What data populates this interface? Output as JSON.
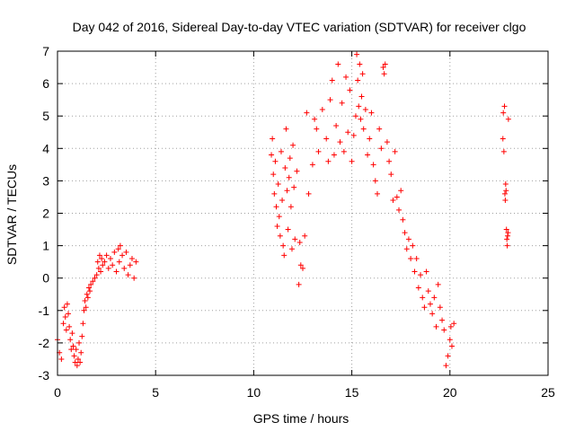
{
  "chart_data": {
    "type": "scatter",
    "title": "Day 042 of 2016, Sidereal Day-to-day VTEC variation (SDTVAR) for receiver clgo",
    "xlabel": "GPS time / hours",
    "ylabel": "SDTVAR / TECUs",
    "xlim": [
      0,
      25
    ],
    "ylim": [
      -3,
      7
    ],
    "x_ticks": [
      "0",
      "5",
      "10",
      "15",
      "20",
      "25"
    ],
    "y_ticks": [
      "-3",
      "-2",
      "-1",
      "0",
      "1",
      "2",
      "3",
      "4",
      "5",
      "6",
      "7"
    ],
    "x_tick_values": [
      0,
      5,
      10,
      15,
      20,
      25
    ],
    "y_tick_values": [
      -3,
      -2,
      -1,
      0,
      1,
      2,
      3,
      4,
      5,
      6,
      7
    ],
    "grid": true,
    "marker": "+",
    "marker_color": "#ff0000",
    "series": [
      {
        "name": "SDTVAR",
        "points": [
          [
            0.0,
            -1.9
          ],
          [
            0.1,
            -2.3
          ],
          [
            0.2,
            -2.5
          ],
          [
            0.3,
            -1.4
          ],
          [
            0.35,
            -0.9
          ],
          [
            0.4,
            -1.2
          ],
          [
            0.45,
            -1.6
          ],
          [
            0.5,
            -0.8
          ],
          [
            0.55,
            -1.1
          ],
          [
            0.6,
            -1.5
          ],
          [
            0.65,
            -1.9
          ],
          [
            0.7,
            -2.2
          ],
          [
            0.75,
            -1.7
          ],
          [
            0.8,
            -2.1
          ],
          [
            0.85,
            -2.4
          ],
          [
            0.9,
            -2.6
          ],
          [
            0.95,
            -2.2
          ],
          [
            1.0,
            -2.7
          ],
          [
            1.05,
            -2.5
          ],
          [
            1.1,
            -2.0
          ],
          [
            1.15,
            -2.6
          ],
          [
            1.2,
            -2.3
          ],
          [
            1.25,
            -1.8
          ],
          [
            1.3,
            -1.4
          ],
          [
            1.35,
            -1.0
          ],
          [
            1.4,
            -0.7
          ],
          [
            1.45,
            -0.9
          ],
          [
            1.5,
            -0.5
          ],
          [
            1.55,
            -0.6
          ],
          [
            1.6,
            -0.3
          ],
          [
            1.65,
            -0.4
          ],
          [
            1.7,
            -0.2
          ],
          [
            1.8,
            -0.1
          ],
          [
            1.9,
            0.0
          ],
          [
            2.0,
            0.1
          ],
          [
            2.05,
            0.5
          ],
          [
            2.1,
            0.3
          ],
          [
            2.15,
            0.7
          ],
          [
            2.2,
            0.2
          ],
          [
            2.25,
            0.6
          ],
          [
            2.3,
            0.4
          ],
          [
            2.4,
            0.5
          ],
          [
            2.5,
            0.7
          ],
          [
            2.6,
            0.3
          ],
          [
            2.7,
            0.6
          ],
          [
            2.8,
            0.4
          ],
          [
            2.9,
            0.8
          ],
          [
            3.0,
            0.2
          ],
          [
            3.1,
            0.9
          ],
          [
            3.15,
            0.5
          ],
          [
            3.2,
            1.0
          ],
          [
            3.3,
            0.7
          ],
          [
            3.4,
            0.3
          ],
          [
            3.5,
            0.8
          ],
          [
            3.6,
            0.1
          ],
          [
            3.7,
            0.4
          ],
          [
            3.8,
            0.6
          ],
          [
            3.9,
            0.0
          ],
          [
            4.0,
            0.5
          ],
          [
            10.9,
            3.8
          ],
          [
            10.95,
            4.3
          ],
          [
            11.0,
            3.2
          ],
          [
            11.05,
            2.6
          ],
          [
            11.1,
            3.6
          ],
          [
            11.15,
            2.2
          ],
          [
            11.2,
            1.6
          ],
          [
            11.25,
            2.9
          ],
          [
            11.3,
            1.9
          ],
          [
            11.35,
            1.3
          ],
          [
            11.4,
            3.9
          ],
          [
            11.45,
            2.4
          ],
          [
            11.5,
            1.0
          ],
          [
            11.55,
            0.7
          ],
          [
            11.6,
            3.4
          ],
          [
            11.65,
            4.6
          ],
          [
            11.7,
            2.7
          ],
          [
            11.75,
            1.5
          ],
          [
            11.8,
            3.1
          ],
          [
            11.85,
            3.7
          ],
          [
            11.9,
            2.2
          ],
          [
            11.95,
            0.9
          ],
          [
            12.0,
            4.1
          ],
          [
            12.05,
            2.8
          ],
          [
            12.1,
            1.2
          ],
          [
            12.2,
            3.3
          ],
          [
            12.3,
            -0.2
          ],
          [
            12.35,
            1.1
          ],
          [
            12.4,
            0.4
          ],
          [
            12.5,
            0.3
          ],
          [
            12.6,
            1.3
          ],
          [
            12.7,
            5.1
          ],
          [
            12.8,
            2.6
          ],
          [
            13.0,
            3.5
          ],
          [
            13.1,
            4.9
          ],
          [
            13.2,
            4.6
          ],
          [
            13.3,
            3.9
          ],
          [
            13.5,
            5.2
          ],
          [
            13.7,
            4.3
          ],
          [
            13.8,
            3.6
          ],
          [
            13.9,
            5.5
          ],
          [
            14.0,
            6.1
          ],
          [
            14.1,
            3.8
          ],
          [
            14.2,
            4.7
          ],
          [
            14.3,
            6.6
          ],
          [
            14.4,
            4.2
          ],
          [
            14.5,
            5.4
          ],
          [
            14.6,
            3.9
          ],
          [
            14.7,
            6.2
          ],
          [
            14.8,
            4.5
          ],
          [
            14.9,
            5.8
          ],
          [
            15.0,
            3.6
          ],
          [
            15.1,
            4.4
          ],
          [
            15.2,
            5.0
          ],
          [
            15.25,
            6.9
          ],
          [
            15.3,
            6.1
          ],
          [
            15.35,
            5.3
          ],
          [
            15.4,
            6.6
          ],
          [
            15.45,
            4.9
          ],
          [
            15.5,
            5.6
          ],
          [
            15.55,
            6.3
          ],
          [
            15.6,
            4.6
          ],
          [
            15.7,
            5.2
          ],
          [
            15.8,
            3.8
          ],
          [
            15.9,
            4.3
          ],
          [
            16.0,
            5.1
          ],
          [
            16.1,
            3.5
          ],
          [
            16.2,
            3.0
          ],
          [
            16.3,
            2.6
          ],
          [
            16.4,
            4.6
          ],
          [
            16.5,
            4.0
          ],
          [
            16.6,
            6.5
          ],
          [
            16.65,
            6.3
          ],
          [
            16.7,
            6.6
          ],
          [
            16.8,
            4.2
          ],
          [
            16.9,
            3.6
          ],
          [
            17.0,
            3.2
          ],
          [
            17.1,
            2.4
          ],
          [
            17.2,
            3.9
          ],
          [
            17.3,
            2.5
          ],
          [
            17.4,
            2.1
          ],
          [
            17.5,
            2.7
          ],
          [
            17.6,
            1.8
          ],
          [
            17.7,
            1.4
          ],
          [
            17.8,
            0.9
          ],
          [
            17.9,
            1.2
          ],
          [
            18.0,
            0.6
          ],
          [
            18.1,
            1.0
          ],
          [
            18.2,
            0.2
          ],
          [
            18.3,
            0.6
          ],
          [
            18.4,
            -0.3
          ],
          [
            18.5,
            0.1
          ],
          [
            18.6,
            -0.6
          ],
          [
            18.7,
            -0.9
          ],
          [
            18.8,
            0.2
          ],
          [
            18.9,
            -0.4
          ],
          [
            19.0,
            -0.8
          ],
          [
            19.1,
            -1.1
          ],
          [
            19.2,
            -0.6
          ],
          [
            19.3,
            -1.5
          ],
          [
            19.4,
            -0.2
          ],
          [
            19.5,
            -0.9
          ],
          [
            19.6,
            -1.3
          ],
          [
            19.7,
            -1.6
          ],
          [
            19.8,
            -2.7
          ],
          [
            19.9,
            -2.4
          ],
          [
            20.0,
            -1.9
          ],
          [
            20.05,
            -1.5
          ],
          [
            20.1,
            -2.1
          ],
          [
            20.2,
            -1.4
          ],
          [
            22.7,
            4.3
          ],
          [
            22.72,
            5.1
          ],
          [
            22.75,
            3.9
          ],
          [
            22.78,
            5.3
          ],
          [
            22.8,
            2.6
          ],
          [
            22.82,
            2.4
          ],
          [
            22.84,
            2.9
          ],
          [
            22.86,
            2.7
          ],
          [
            22.88,
            1.5
          ],
          [
            22.9,
            1.2
          ],
          [
            22.92,
            1.0
          ],
          [
            22.94,
            1.3
          ],
          [
            22.96,
            1.4
          ],
          [
            22.98,
            4.9
          ]
        ]
      }
    ]
  }
}
